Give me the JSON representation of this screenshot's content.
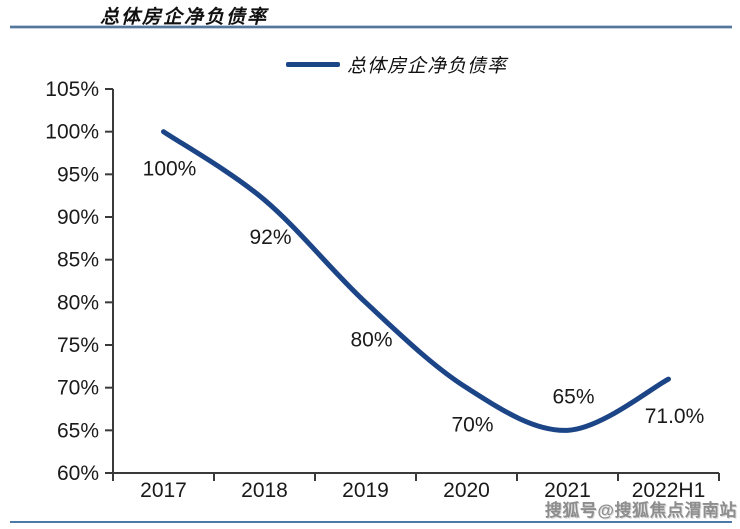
{
  "page": {
    "title": "总体房企净负债率",
    "watermark": "搜狐号@搜狐焦点渭南站"
  },
  "legend": {
    "label": "总体房企净负债率"
  },
  "colors": {
    "line": "#1c4587",
    "axis": "#3a3a3a",
    "label_text": "#1a1a1a",
    "top_rule": "#56779c",
    "bottom_rule": "#4d79a8",
    "watermark": "#8e8e8e"
  },
  "chart_data": {
    "type": "line",
    "title": "总体房企净负债率",
    "categories": [
      "2017",
      "2018",
      "2019",
      "2020",
      "2021",
      "2022H1"
    ],
    "series": [
      {
        "name": "总体房企净负债率",
        "values": [
          100,
          92,
          80,
          70,
          65,
          71
        ]
      }
    ],
    "data_labels": [
      "100%",
      "92%",
      "80%",
      "70%",
      "65%",
      "71.0%"
    ],
    "label_positions": [
      "below",
      "below",
      "below",
      "below",
      "above",
      "below"
    ],
    "y_ticks": [
      "105%",
      "100%",
      "95%",
      "90%",
      "85%",
      "80%",
      "75%",
      "70%",
      "65%",
      "60%"
    ],
    "ylim": [
      60,
      105
    ],
    "y_tick_step": 5,
    "xlabel": "",
    "ylabel": "",
    "grid": false,
    "smooth": true,
    "legend_position": "top-center"
  }
}
